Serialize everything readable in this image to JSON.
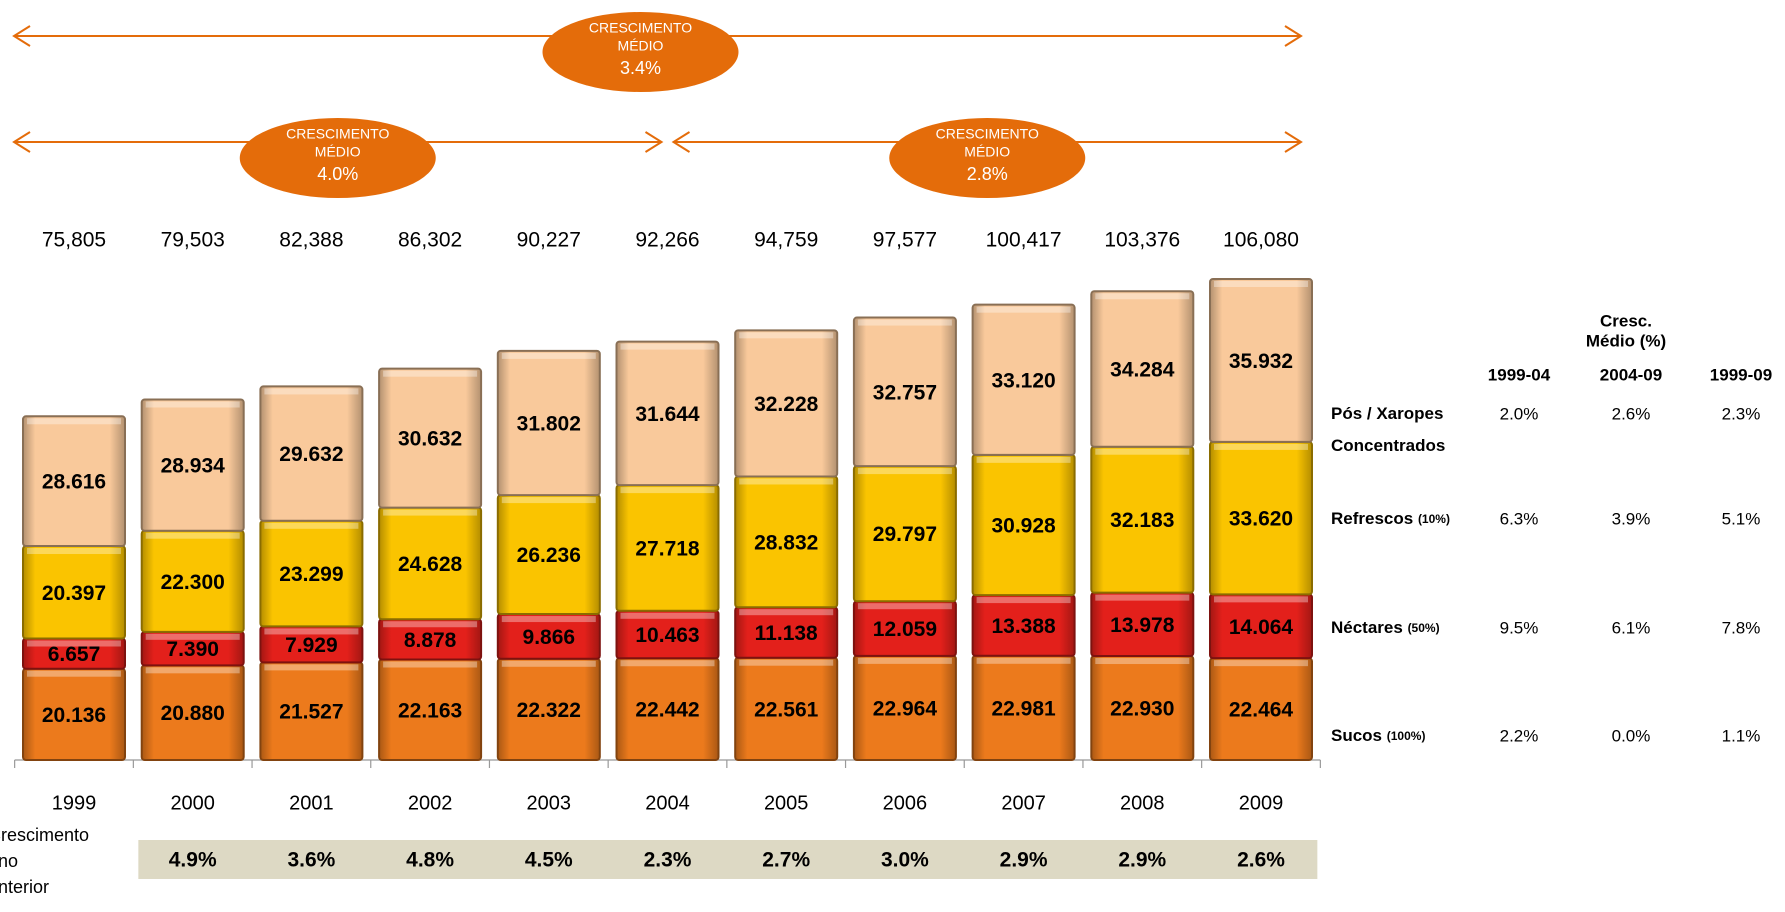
{
  "chart_data": {
    "type": "stacked_bar",
    "categories": [
      "1999",
      "2000",
      "2001",
      "2002",
      "2003",
      "2004",
      "2005",
      "2006",
      "2007",
      "2008",
      "2009"
    ],
    "series": [
      {
        "name": "Sucos (100%)",
        "color": "#ec7a1c",
        "label_color": "#e8761a",
        "values": [
          20.136,
          20.88,
          21.527,
          22.163,
          22.322,
          22.442,
          22.561,
          22.964,
          22.981,
          22.93,
          22.464
        ],
        "value_labels": [
          "20.136",
          "20.880",
          "21.527",
          "22.163",
          "22.322",
          "22.442",
          "22.561",
          "22.964",
          "22.981",
          "22.930",
          "22.464"
        ],
        "growth": [
          2.2,
          0.0,
          1.1
        ],
        "growth_labels": [
          "2.2%",
          "0.0%",
          "1.1%"
        ]
      },
      {
        "name": "Néctares (50%)",
        "color": "#e3201b",
        "label_color": "#e00000",
        "values": [
          6.657,
          7.39,
          7.929,
          8.878,
          9.866,
          10.463,
          11.138,
          12.059,
          13.388,
          13.978,
          14.064
        ],
        "value_labels": [
          "6.657",
          "7.390",
          "7.929",
          "8.878",
          "9.866",
          "10.463",
          "11.138",
          "12.059",
          "13.388",
          "13.978",
          "14.064"
        ],
        "growth": [
          9.5,
          6.1,
          7.8
        ],
        "growth_labels": [
          "9.5%",
          "6.1%",
          "7.8%"
        ]
      },
      {
        "name": "Refrescos (10%)",
        "color": "#fac400",
        "label_color": "#f5b400",
        "values": [
          20.397,
          22.3,
          23.299,
          24.628,
          26.236,
          27.718,
          28.832,
          29.797,
          30.928,
          32.183,
          33.62
        ],
        "value_labels": [
          "20.397",
          "22.300",
          "23.299",
          "24.628",
          "26.236",
          "27.718",
          "28.832",
          "29.797",
          "30.928",
          "32.183",
          "33.620"
        ],
        "growth": [
          6.3,
          3.9,
          5.1
        ],
        "growth_labels": [
          "6.3%",
          "3.9%",
          "5.1%"
        ]
      },
      {
        "name": "Pós / Xaropes Concentrados",
        "color": "#f9c99b",
        "label_color": "#f0b020",
        "values": [
          28.616,
          28.934,
          29.632,
          30.632,
          31.802,
          31.644,
          32.228,
          32.757,
          33.12,
          34.284,
          35.932
        ],
        "value_labels": [
          "28.616",
          "28.934",
          "29.632",
          "30.632",
          "31.802",
          "31.644",
          "32.228",
          "32.757",
          "33.120",
          "34.284",
          "35.932"
        ],
        "growth": [
          2.0,
          2.6,
          2.3
        ],
        "growth_labels": [
          "2.0%",
          "2.6%",
          "2.3%"
        ]
      }
    ],
    "totals": {
      "values": [
        75.805,
        79.503,
        82.388,
        86.302,
        90.227,
        92.266,
        94.759,
        97.577,
        100.417,
        103.376,
        106.08
      ],
      "value_labels": [
        "75,805",
        "79,503",
        "82,388",
        "86,302",
        "90,227",
        "92,266",
        "94,759",
        "97,577",
        "100,417",
        "103,376",
        "106,080"
      ]
    },
    "yoy_growth": {
      "title": [
        "Crescimento",
        "ano",
        "anterior"
      ],
      "values": [
        null,
        4.9,
        3.6,
        4.8,
        4.5,
        2.3,
        2.7,
        3.0,
        2.9,
        2.9,
        2.6
      ],
      "value_labels": [
        null,
        "4.9%",
        "3.6%",
        "4.8%",
        "4.5%",
        "2.3%",
        "2.7%",
        "3.0%",
        "2.9%",
        "2.9%",
        "2.6%"
      ]
    },
    "growth_table": {
      "title": [
        "Cresc.",
        "Médio (%)"
      ],
      "columns": [
        "1999-04",
        "2004-09",
        "1999-09"
      ]
    },
    "annotations": [
      {
        "label": [
          "CRESCIMENTO",
          "MÉDIO"
        ],
        "value": 3.4,
        "value_label": "3.4%",
        "from": "1999",
        "to": "2009"
      },
      {
        "label": [
          "CRESCIMENTO",
          "MÉDIO"
        ],
        "value": 4.0,
        "value_label": "4.0%",
        "from": "1999",
        "to": "2004"
      },
      {
        "label": [
          "CRESCIMENTO",
          "MÉDIO"
        ],
        "value": 2.8,
        "value_label": "2.8%",
        "from": "2004",
        "to": "2009"
      }
    ]
  }
}
